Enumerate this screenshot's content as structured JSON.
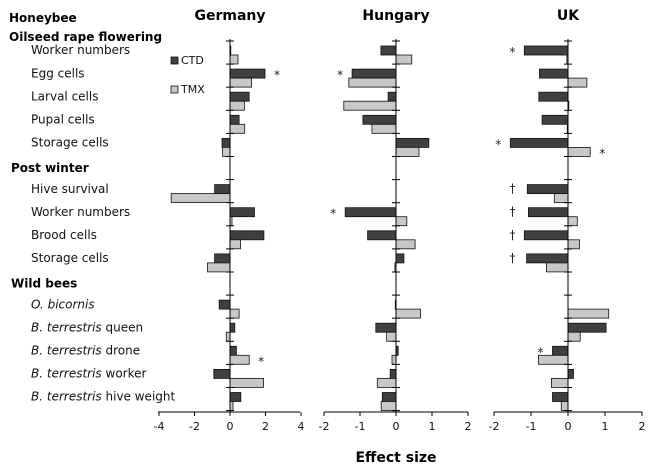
{
  "chart_data": {
    "type": "bar",
    "orientation": "horizontal",
    "xlabel": "Effect size",
    "legend": {
      "placement": "top-left of Germany panel",
      "entries": [
        {
          "name": "CTD",
          "color": "#3f3f3f"
        },
        {
          "name": "TMX",
          "color": "#c8c8c8"
        }
      ]
    },
    "rows": [
      {
        "type": "header",
        "label": "Honeybee"
      },
      {
        "type": "header",
        "label": "Oilseed rape flowering"
      },
      {
        "type": "cat",
        "label": "Worker numbers"
      },
      {
        "type": "cat",
        "label": "Egg cells"
      },
      {
        "type": "cat",
        "label": "Larval cells"
      },
      {
        "type": "cat",
        "label": "Pupal cells"
      },
      {
        "type": "cat",
        "label": "Storage cells"
      },
      {
        "type": "header",
        "label": "Post winter"
      },
      {
        "type": "cat",
        "label": "Hive survival"
      },
      {
        "type": "cat",
        "label": "Worker numbers"
      },
      {
        "type": "cat",
        "label": "Brood cells"
      },
      {
        "type": "cat",
        "label": "Storage cells"
      },
      {
        "type": "header",
        "label": "Wild bees"
      },
      {
        "type": "cat",
        "label": "O. bicornis",
        "italic": "O. bicornis",
        "rest": ""
      },
      {
        "type": "cat",
        "label": "B. terrestris queen",
        "italic": "B. terrestris",
        "rest": " queen"
      },
      {
        "type": "cat",
        "label": "B. terrestris drone",
        "italic": "B. terrestris",
        "rest": " drone"
      },
      {
        "type": "cat",
        "label": "B. terrestris worker",
        "italic": "B. terrestris",
        "rest": " worker"
      },
      {
        "type": "cat",
        "label": "B. terrestris hive weight",
        "italic": "B. terrestris",
        "rest": " hive weight"
      }
    ],
    "panels": [
      {
        "title": "Germany",
        "xlim": [
          -4,
          4
        ],
        "ticks": [
          -4,
          -2,
          0,
          2,
          4
        ],
        "series": [
          {
            "name": "CTD",
            "values": [
              0.02,
              1.97,
              1.08,
              0.51,
              -0.45,
              -0.87,
              1.38,
              1.91,
              -0.87,
              -0.61,
              0.27,
              0.36,
              -0.91,
              0.61
            ]
          },
          {
            "name": "TMX",
            "values": [
              0.45,
              1.21,
              0.81,
              0.83,
              -0.42,
              -3.31,
              0.11,
              0.59,
              -1.27,
              0.51,
              -0.21,
              1.08,
              1.89,
              0.17
            ]
          }
        ],
        "annotations": [
          {
            "row": 1,
            "series": "CTD",
            "side": "right",
            "symbol": "*"
          },
          {
            "row": 11,
            "series": "TMX",
            "side": "right",
            "symbol": "*"
          }
        ]
      },
      {
        "title": "Hungary",
        "xlim": [
          -2,
          2
        ],
        "ticks": [
          -2,
          -1,
          0,
          1,
          2
        ],
        "series": [
          {
            "name": "CTD",
            "values": [
              -0.42,
              -1.22,
              -0.22,
              -0.92,
              0.91,
              null,
              -1.41,
              -0.79,
              0.22,
              -0.02,
              -0.56,
              0.06,
              -0.16,
              -0.38
            ]
          },
          {
            "name": "TMX",
            "values": [
              0.44,
              -1.31,
              -1.45,
              -0.67,
              0.64,
              null,
              0.3,
              0.53,
              -0.03,
              0.68,
              -0.26,
              -0.11,
              -0.52,
              -0.41
            ]
          }
        ],
        "annotations": [
          {
            "row": 1,
            "series": "CTD",
            "side": "left",
            "symbol": "*"
          },
          {
            "row": 6,
            "series": "CTD",
            "side": "left",
            "symbol": "*"
          }
        ]
      },
      {
        "title": "UK",
        "xlim": [
          -2,
          2
        ],
        "ticks": [
          -2,
          -1,
          0,
          1,
          2
        ],
        "series": [
          {
            "name": "CTD",
            "values": [
              -1.18,
              -0.77,
              -0.79,
              -0.7,
              -1.56,
              -1.1,
              -1.07,
              -1.18,
              -1.12,
              null,
              1.03,
              -0.42,
              0.15,
              -0.42
            ]
          },
          {
            "name": "TMX",
            "values": [
              -0.03,
              0.51,
              0.0,
              -0.02,
              0.6,
              -0.37,
              0.25,
              0.31,
              -0.58,
              1.1,
              0.33,
              -0.8,
              -0.45,
              -0.18
            ]
          }
        ],
        "annotations": [
          {
            "row": 0,
            "series": "CTD",
            "side": "left",
            "symbol": "*"
          },
          {
            "row": 4,
            "series": "CTD",
            "side": "left",
            "symbol": "*"
          },
          {
            "row": 4,
            "series": "TMX",
            "side": "right",
            "symbol": "*"
          },
          {
            "row": 5,
            "series": "CTD",
            "side": "left",
            "symbol": "†"
          },
          {
            "row": 6,
            "series": "CTD",
            "side": "left",
            "symbol": "†"
          },
          {
            "row": 7,
            "series": "CTD",
            "side": "left",
            "symbol": "†"
          },
          {
            "row": 8,
            "series": "CTD",
            "side": "left",
            "symbol": "†"
          },
          {
            "row": 11,
            "series": "CTD",
            "side": "left",
            "symbol": "*"
          }
        ]
      }
    ]
  }
}
